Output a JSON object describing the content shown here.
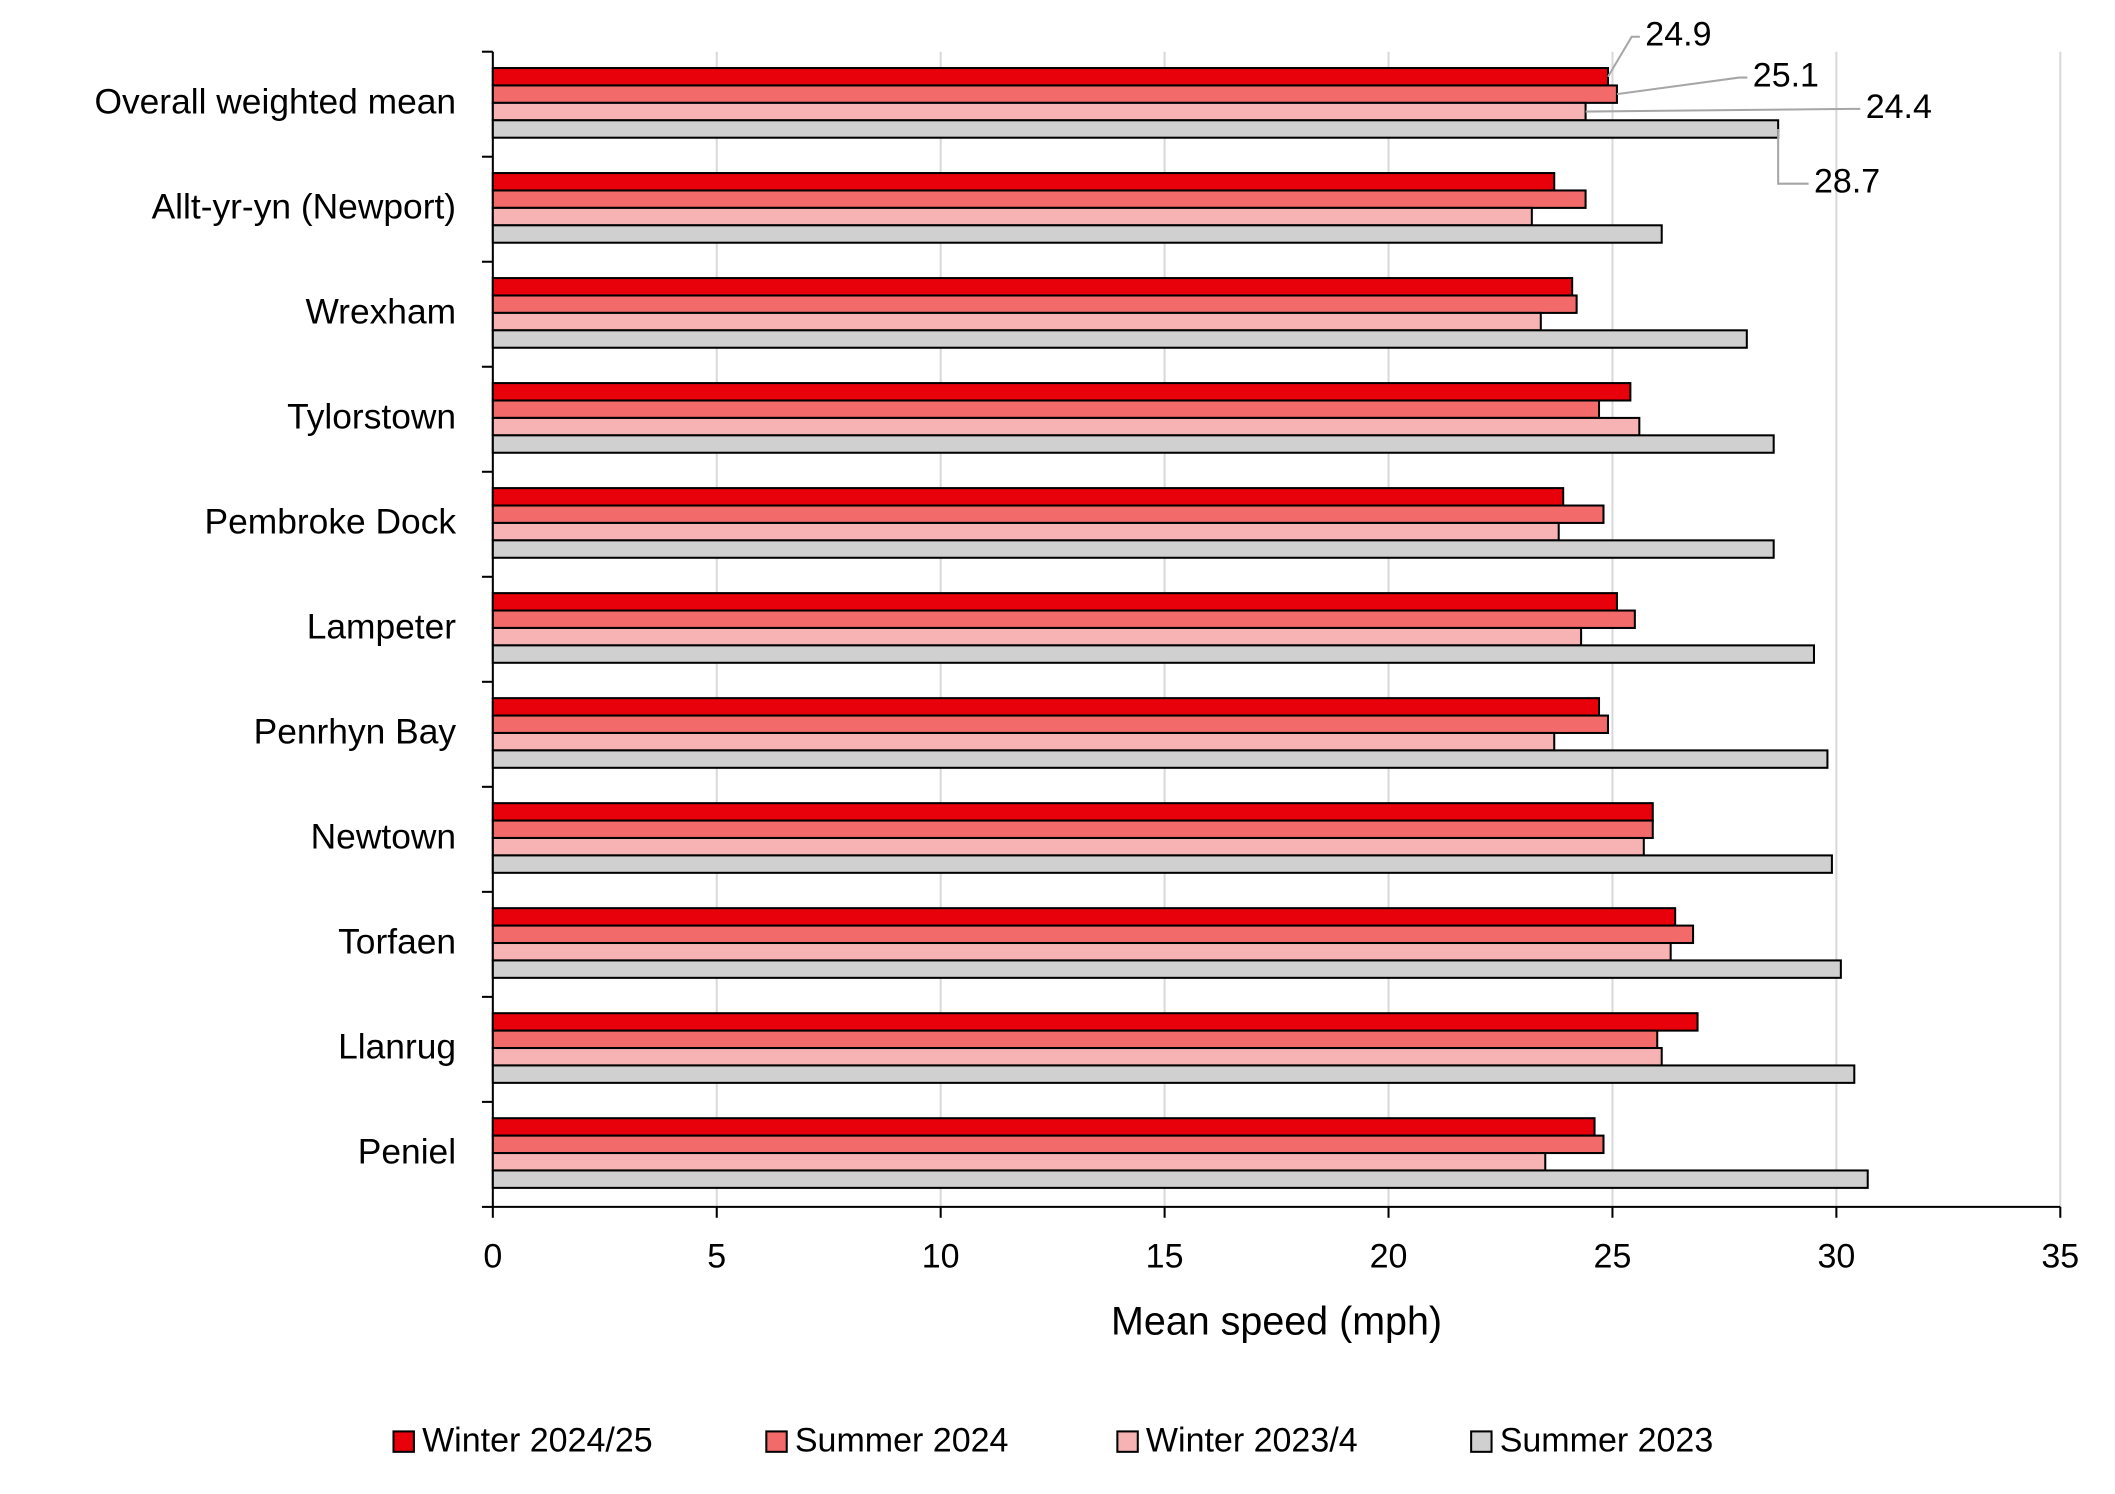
{
  "chart_data": {
    "type": "barh",
    "x_label": "Mean speed (mph)",
    "categories": [
      "Overall weighted mean",
      "Allt-yr-yn (Newport)",
      "Wrexham",
      "Tylorstown",
      "Pembroke Dock",
      "Lampeter",
      "Penrhyn Bay",
      "Newtown",
      "Torfaen",
      "Llanrug",
      "Peniel"
    ],
    "series": [
      {
        "name": "Winter 2024/25",
        "color": "#e8000b",
        "values": [
          24.9,
          23.7,
          24.1,
          25.4,
          23.9,
          25.1,
          24.7,
          25.9,
          26.4,
          26.9,
          24.6
        ]
      },
      {
        "name": "Summer 2024",
        "color": "#f26a6a",
        "values": [
          25.1,
          24.4,
          24.2,
          24.7,
          24.8,
          25.5,
          24.9,
          25.9,
          26.8,
          26.0,
          24.8
        ]
      },
      {
        "name": "Winter 2023/4",
        "color": "#f7b3b3",
        "values": [
          24.4,
          23.2,
          23.4,
          25.6,
          23.8,
          24.3,
          23.7,
          25.7,
          26.3,
          26.1,
          23.5
        ]
      },
      {
        "name": "Summer 2023",
        "color": "#d0d0d0",
        "values": [
          28.7,
          26.1,
          28.0,
          28.6,
          28.6,
          29.5,
          29.8,
          29.9,
          30.1,
          30.4,
          30.7
        ]
      }
    ],
    "xlim": [
      0,
      35
    ],
    "xticks": [
      0,
      5,
      10,
      15,
      20,
      25,
      30,
      35
    ],
    "grid": true,
    "legend": "bottom"
  }
}
